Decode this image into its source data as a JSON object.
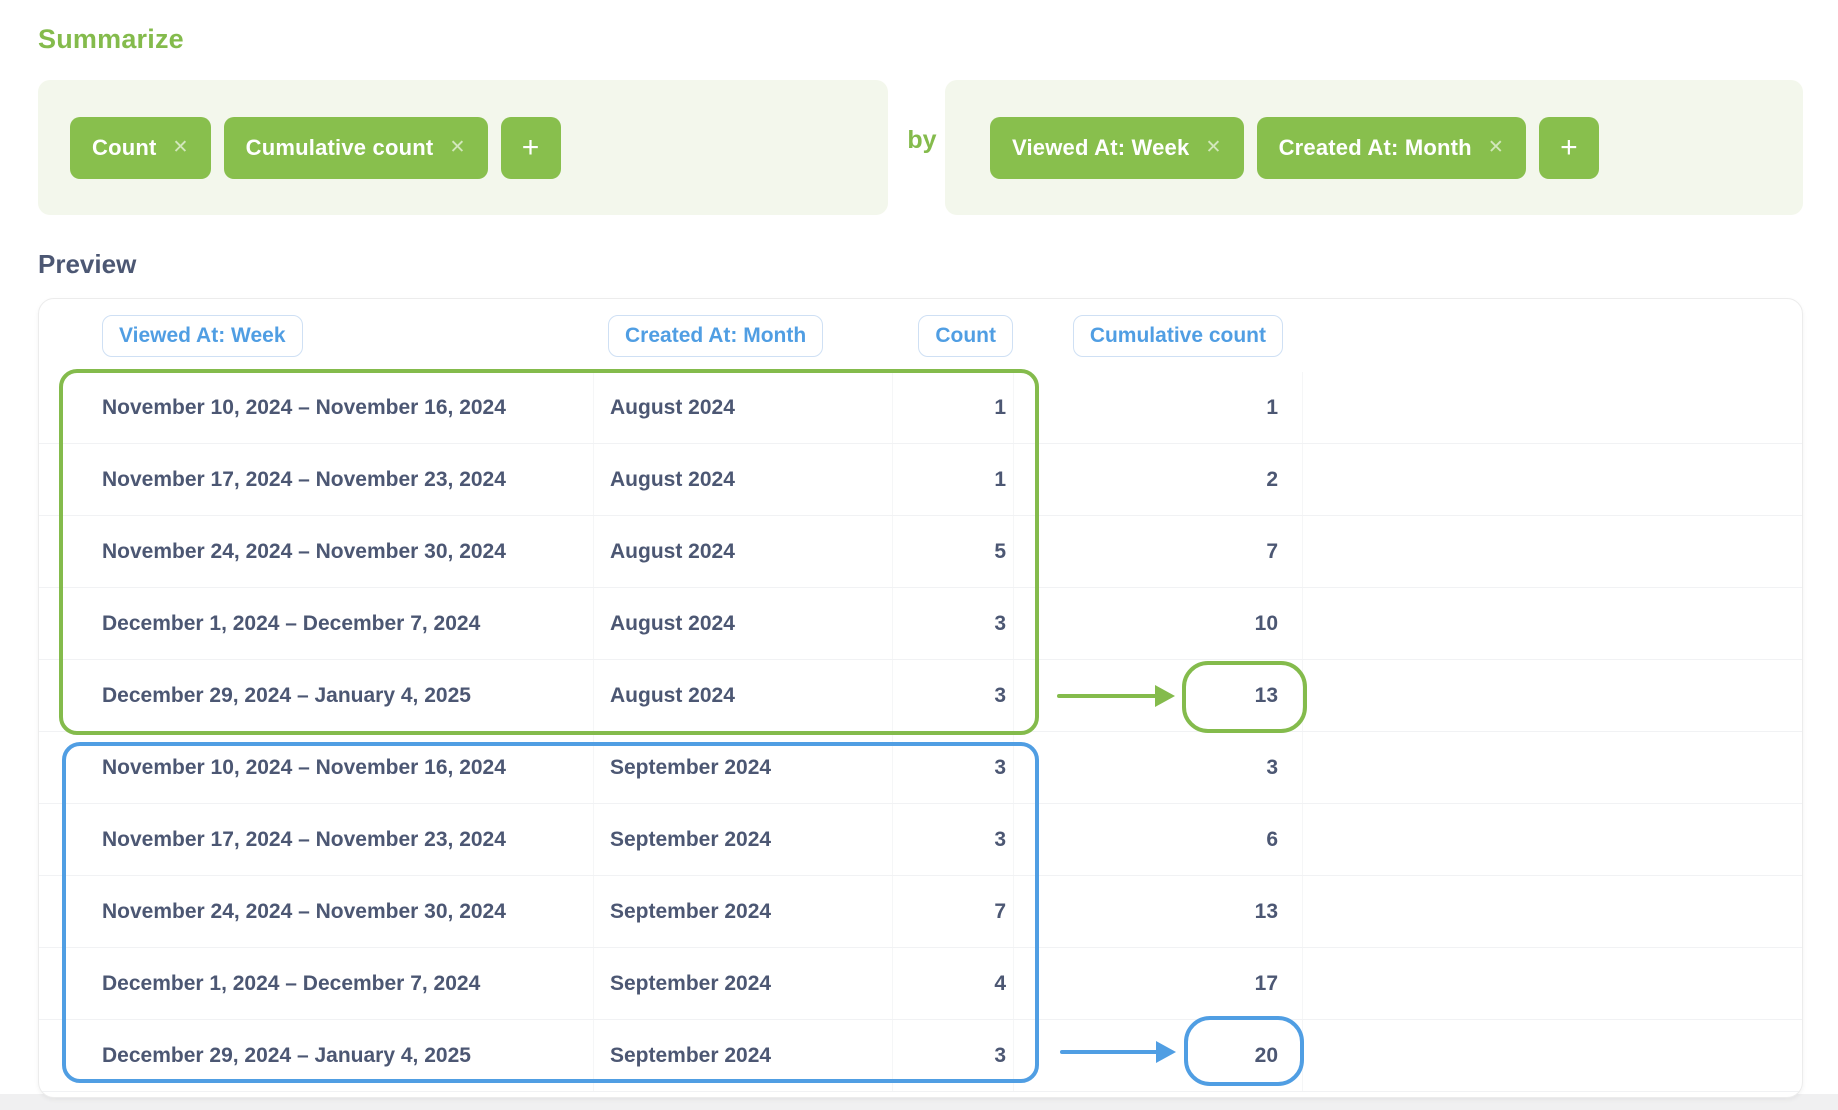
{
  "colors": {
    "green_accent": "#84bb4c",
    "pill_green": "#88bf4d",
    "blue_accent": "#509ee3",
    "panel_background": "#f3f7ec",
    "text_dark": "#4c5773",
    "header_pill_border": "#cfe0f4"
  },
  "summarize": {
    "title": "Summarize",
    "by_label": "by",
    "remove_glyph": "✕",
    "add_label": "+",
    "metrics": [
      {
        "label": "Count"
      },
      {
        "label": "Cumulative count"
      }
    ],
    "groupings": [
      {
        "label": "Viewed At: Week"
      },
      {
        "label": "Created At: Month"
      }
    ]
  },
  "preview": {
    "title": "Preview",
    "columns": [
      "Viewed At: Week",
      "Created At: Month",
      "Count",
      "Cumulative count"
    ],
    "rows": [
      [
        "November 10, 2024 – November 16, 2024",
        "August 2024",
        "1",
        "1"
      ],
      [
        "November 17, 2024 – November 23, 2024",
        "August 2024",
        "1",
        "2"
      ],
      [
        "November 24, 2024 – November 30, 2024",
        "August 2024",
        "5",
        "7"
      ],
      [
        "December 1, 2024 – December 7, 2024",
        "August 2024",
        "3",
        "10"
      ],
      [
        "December 29, 2024 – January 4, 2025",
        "August 2024",
        "3",
        "13"
      ],
      [
        "November 10, 2024 – November 16, 2024",
        "September 2024",
        "3",
        "3"
      ],
      [
        "November 17, 2024 – November 23, 2024",
        "September 2024",
        "3",
        "6"
      ],
      [
        "November 24, 2024 – November 30, 2024",
        "September 2024",
        "7",
        "13"
      ],
      [
        "December 1, 2024 – December 7, 2024",
        "September 2024",
        "4",
        "17"
      ],
      [
        "December 29, 2024 – January 4, 2025",
        "September 2024",
        "3",
        "20"
      ]
    ],
    "annotations": {
      "green_circled_value": "13",
      "blue_circled_value": "20"
    }
  }
}
